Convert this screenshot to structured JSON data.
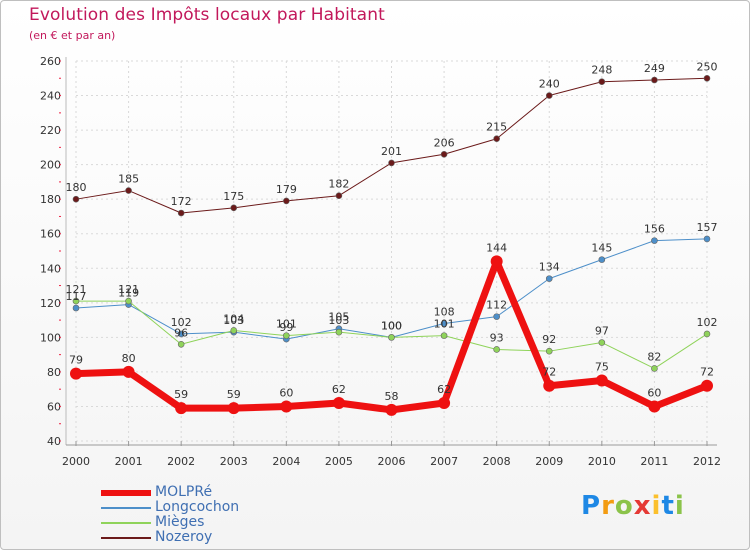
{
  "chart_data": {
    "type": "line",
    "title": "Evolution des Impôts locaux par Habitant",
    "subtitle": "(en € et par an)",
    "xlabel": "",
    "ylabel": "",
    "categories": [
      "2000",
      "2001",
      "2002",
      "2003",
      "2004",
      "2005",
      "2006",
      "2007",
      "2008",
      "2009",
      "2010",
      "2011",
      "2012"
    ],
    "ylim": [
      40,
      260
    ],
    "yticks": [
      40,
      60,
      80,
      100,
      120,
      140,
      160,
      180,
      200,
      220,
      240,
      260
    ],
    "grid": true,
    "legend_position": "bottom-left",
    "series": [
      {
        "name": "Nozeroy",
        "color": "#6b1a1a",
        "width": 1,
        "values": [
          180,
          185,
          172,
          175,
          179,
          182,
          201,
          206,
          215,
          240,
          248,
          249,
          250
        ]
      },
      {
        "name": "Longcochon",
        "color": "#4d8fc9",
        "width": 1,
        "values": [
          117,
          119,
          102,
          103,
          99,
          105,
          100,
          108,
          112,
          134,
          145,
          156,
          157
        ]
      },
      {
        "name": "Mièges",
        "color": "#8fd35a",
        "width": 1,
        "values": [
          121,
          121,
          96,
          104,
          101,
          103,
          100,
          101,
          93,
          92,
          97,
          82,
          102
        ]
      },
      {
        "name": "MOLPRé",
        "color": "#ee1111",
        "width": 7,
        "values": [
          79,
          80,
          59,
          59,
          60,
          62,
          58,
          62,
          144,
          72,
          75,
          60,
          72
        ]
      }
    ]
  },
  "legend": [
    {
      "name": "MOLPRé",
      "color": "#ee1111"
    },
    {
      "name": "Longcochon",
      "color": "#4d8fc9"
    },
    {
      "name": "Mièges",
      "color": "#8fd35a"
    },
    {
      "name": "Nozeroy",
      "color": "#6b1a1a"
    }
  ],
  "logo": {
    "text": "Proxiti",
    "letters": [
      "P",
      "r",
      "o",
      "x",
      "i",
      "t",
      "i"
    ]
  }
}
